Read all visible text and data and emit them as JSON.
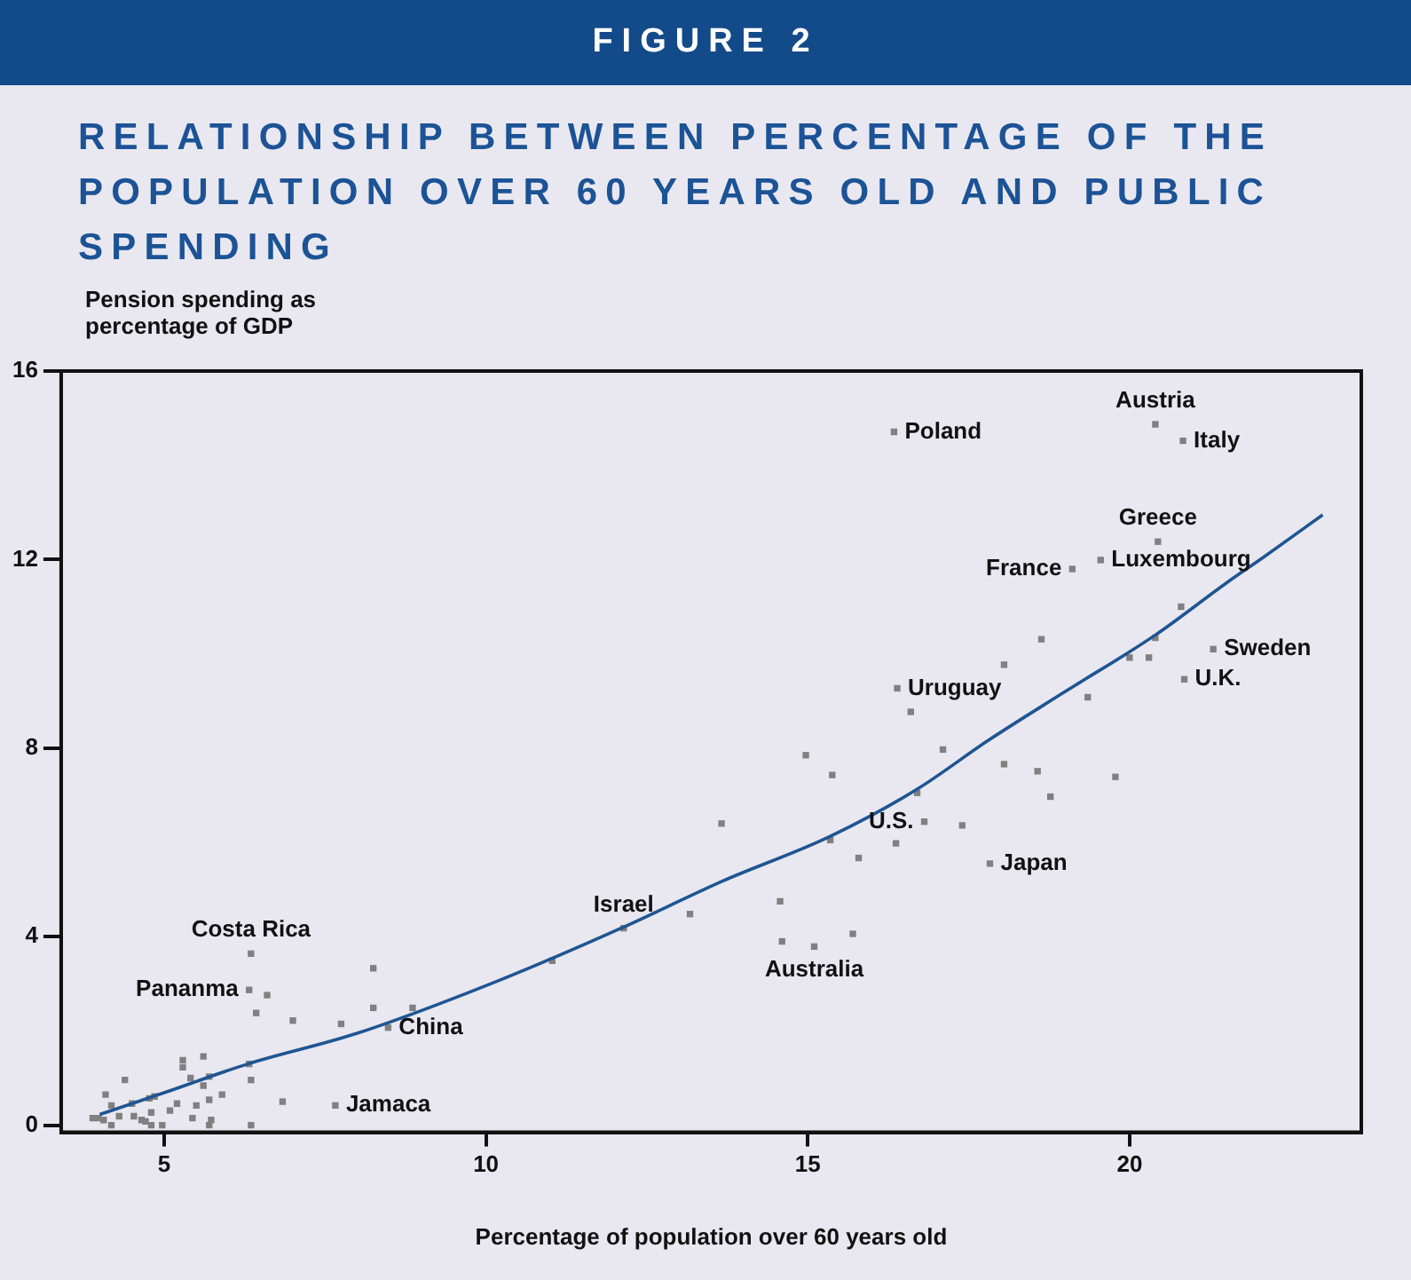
{
  "chart_data": {
    "type": "scatter",
    "title": "RELATIONSHIP BETWEEN PERCENTAGE OF THE POPULATION OVER 60 YEARS OLD AND PUBLIC SPENDING",
    "xlabel": "Percentage of population over 60 years old",
    "ylabel": "Pension spending as percentage of GDP",
    "xlim": [
      3.4,
      23.6
    ],
    "xticks": [
      5,
      10,
      15,
      20
    ],
    "ylim": [
      -0.15,
      16
    ],
    "yticks": [
      0,
      4,
      8,
      12,
      16
    ],
    "grid": false,
    "legend": false,
    "series": [
      {
        "marker": "square",
        "color": "#808080",
        "x": [
          6.35,
          8.25,
          6.32,
          6.6,
          6.43,
          7.0,
          7.75,
          8.25,
          8.48,
          8.86,
          5.29,
          5.29,
          5.61,
          6.32,
          5.41,
          5.7,
          5.61,
          6.35,
          5.9,
          5.7,
          4.39,
          4.09,
          4.5,
          4.85,
          4.77,
          5.2,
          5.5,
          5.09,
          5.44,
          5.73,
          6.84,
          7.66,
          4.18,
          4.3,
          4.53,
          4.65,
          4.71,
          4.8,
          3.89,
          3.98,
          4.06,
          4.18,
          4.8,
          4.97,
          5.7,
          6.35,
          11.03,
          12.14,
          13.17,
          13.66,
          14.57,
          14.6,
          15.1,
          15.7,
          14.97,
          15.38,
          15.35,
          15.79,
          16.37,
          16.7,
          16.81,
          17.4,
          17.1,
          16.6,
          17.83,
          16.34,
          20.4,
          20.83,
          20.44,
          19.11,
          19.55,
          18.63,
          18.05,
          16.39,
          20.8,
          20.4,
          20.0,
          20.3,
          21.3,
          20.85,
          19.35,
          18.05,
          18.57,
          18.77,
          19.78
        ],
        "values": [
          3.64,
          3.33,
          2.87,
          2.76,
          2.38,
          2.22,
          2.15,
          2.49,
          2.07,
          2.49,
          1.38,
          1.23,
          1.46,
          1.3,
          1.0,
          1.03,
          0.84,
          0.96,
          0.65,
          0.54,
          0.96,
          0.65,
          0.46,
          0.61,
          0.57,
          0.46,
          0.42,
          0.31,
          0.15,
          0.11,
          0.5,
          0.42,
          0.42,
          0.19,
          0.19,
          0.11,
          0.08,
          0.27,
          0.15,
          0.15,
          0.11,
          0,
          0,
          0,
          0,
          0,
          3.49,
          4.18,
          4.48,
          6.4,
          4.75,
          3.9,
          3.79,
          4.06,
          7.85,
          7.43,
          6.05,
          5.67,
          5.98,
          7.05,
          6.44,
          6.36,
          7.97,
          8.77,
          5.55,
          14.71,
          14.87,
          14.52,
          12.38,
          11.8,
          11.99,
          10.31,
          9.77,
          9.27,
          11.0,
          10.34,
          9.92,
          9.92,
          10.1,
          9.46,
          9.08,
          7.66,
          7.51,
          6.97,
          7.39
        ]
      },
      {
        "type": "line",
        "marker": "none",
        "line_style": "solid",
        "color": "#1f5592",
        "x": [
          4.0,
          5.0,
          6.3,
          8.0,
          10.2,
          12.1,
          13.66,
          15.35,
          16.7,
          17.8,
          19.0,
          20.4,
          21.5,
          22.1,
          23.0
        ],
        "values": [
          0.23,
          0.69,
          1.3,
          1.95,
          3.07,
          4.18,
          5.17,
          6.13,
          7.13,
          8.16,
          9.2,
          10.4,
          11.5,
          12.07,
          12.95
        ]
      }
    ],
    "annotations": [
      "FIGURE 2",
      {
        "text": "Poland",
        "x": 16.34,
        "y": 14.71
      },
      {
        "text": "Austria",
        "x": 20.4,
        "y": 14.87
      },
      {
        "text": "Italy",
        "x": 20.83,
        "y": 14.52
      },
      {
        "text": "Luxembourg",
        "x": 19.55,
        "y": 11.99
      },
      {
        "text": "Greece",
        "x": 20.44,
        "y": 12.38
      },
      {
        "text": "France",
        "x": 19.11,
        "y": 11.8
      },
      {
        "text": "Sweden",
        "x": 21.3,
        "y": 10.1
      },
      {
        "text": "Uruguay",
        "x": 16.39,
        "y": 9.27
      },
      {
        "text": "U.K.",
        "x": 20.85,
        "y": 9.46
      },
      {
        "text": "U.S.",
        "x": 16.81,
        "y": 6.44
      },
      {
        "text": "Japan",
        "x": 17.83,
        "y": 5.55
      },
      {
        "text": "Israel",
        "x": 12.14,
        "y": 4.18
      },
      {
        "text": "Australia",
        "x": 15.1,
        "y": 3.79
      },
      {
        "text": "Pananma",
        "x": 6.32,
        "y": 2.87
      },
      {
        "text": "Costa Rica",
        "x": 6.35,
        "y": 3.64
      },
      {
        "text": "China",
        "x": 8.48,
        "y": 2.07
      },
      {
        "text": "Jamaca",
        "x": 7.66,
        "y": 0.42
      }
    ]
  }
}
